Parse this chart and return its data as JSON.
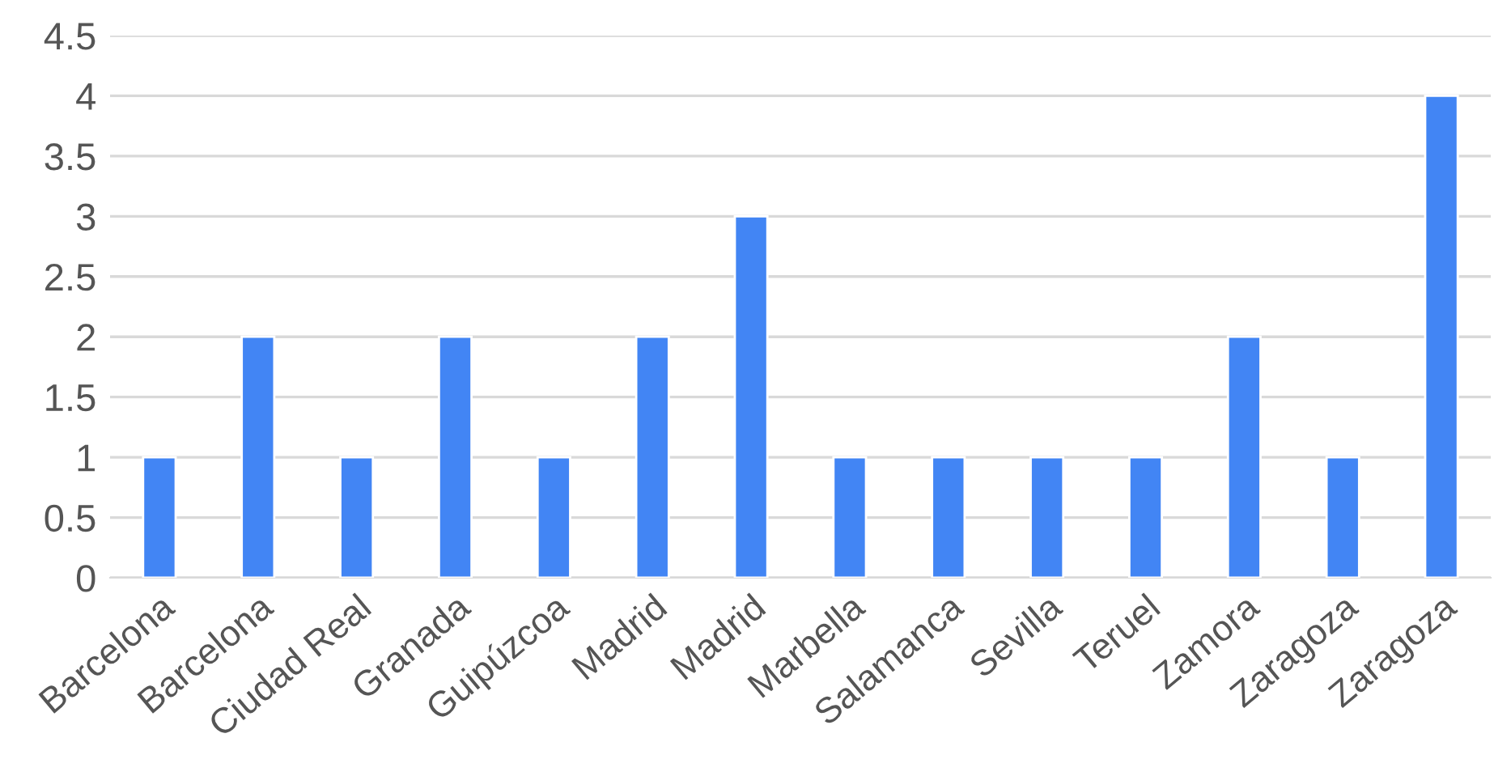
{
  "chart_data": {
    "type": "bar",
    "categories": [
      "Barcelona",
      "Barcelona",
      "Ciudad Real",
      "Granada",
      "Guipúzcoa",
      "Madrid",
      "Madrid",
      "Marbella",
      "Salamanca",
      "Sevilla",
      "Teruel",
      "Zamora",
      "Zaragoza",
      "Zaragoza"
    ],
    "values": [
      1,
      2,
      1,
      2,
      1,
      2,
      3,
      1,
      1,
      1,
      1,
      2,
      1,
      4
    ],
    "color": "#4285f4",
    "ylim": [
      0,
      4.5
    ],
    "yticks": [
      0,
      0.5,
      1,
      1.5,
      2,
      2.5,
      3,
      3.5,
      4,
      4.5
    ],
    "grid": "y"
  }
}
